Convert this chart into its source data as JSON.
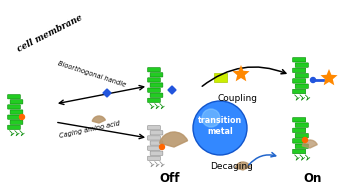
{
  "bg_color": "#ffffff",
  "membrane_color": "#7de8f0",
  "membrane_outline": "#5ac8d8",
  "protein_green": "#22cc22",
  "protein_dark": "#008800",
  "arrow_color": "#111111",
  "decaging_arrow_color": "#2266cc",
  "caging_color": "#b8956a",
  "star_color": "#ff8800",
  "lime_color": "#ccee00",
  "cell_membrane_text": "cell membrane",
  "bioorthogonal_text": "Bioorthogonal handle",
  "caging_text": "Caging amino acid",
  "coupling_text": "Coupling",
  "decaging_text": "Decaging",
  "transition_text": "transition\nmetal",
  "off_text": "Off",
  "on_text": "On",
  "figw": 3.6,
  "figh": 1.89,
  "dpi": 100
}
